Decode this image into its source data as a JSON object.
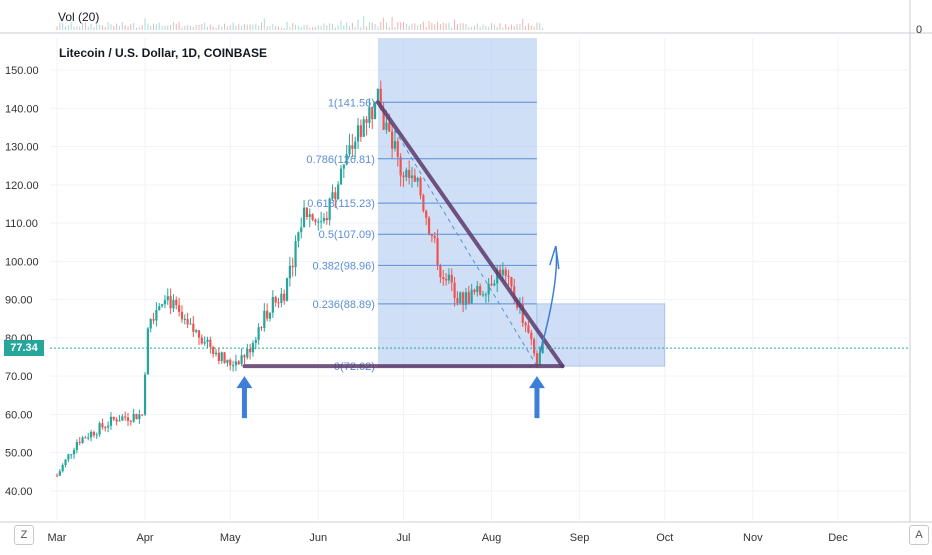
{
  "header": {
    "volume_label": "Vol (20)",
    "volume_axis_zero": "0",
    "title": "Litecoin / U.S. Dollar, 1D, COINBASE",
    "current_price": "77.34"
  },
  "controls": {
    "left_button": "Z",
    "right_button": "A"
  },
  "colors": {
    "up": "#26a69a",
    "down": "#ef5350",
    "grid": "#f0f3fa",
    "accent_line": "#26a69a",
    "fib": "#5b8ed6",
    "box_fill": "#a8c4ef",
    "trend_line": "#5c3a6b"
  },
  "chart_data": {
    "type": "candlestick",
    "title": "Litecoin / U.S. Dollar, 1D, COINBASE",
    "ylim": [
      35,
      158
    ],
    "y_ticks": [
      "40.00",
      "50.00",
      "60.00",
      "70.00",
      "80.00",
      "90.00",
      "100.00",
      "110.00",
      "120.00",
      "130.00",
      "140.00",
      "150.00"
    ],
    "x_ticks": [
      "Mar",
      "Apr",
      "May",
      "Jun",
      "Jul",
      "Aug",
      "Sep",
      "Oct",
      "Nov",
      "Dec"
    ],
    "x_range": [
      "2019-03-01",
      "2019-12-31"
    ],
    "grid": true,
    "current_price": 77.34,
    "price_path": [
      {
        "date": "2019-03-01",
        "value": 44
      },
      {
        "date": "2019-03-08",
        "value": 53
      },
      {
        "date": "2019-03-15",
        "value": 56
      },
      {
        "date": "2019-03-22",
        "value": 59
      },
      {
        "date": "2019-03-31",
        "value": 60
      },
      {
        "date": "2019-04-02",
        "value": 84
      },
      {
        "date": "2019-04-08",
        "value": 92
      },
      {
        "date": "2019-04-15",
        "value": 83
      },
      {
        "date": "2019-04-22",
        "value": 80
      },
      {
        "date": "2019-04-30",
        "value": 73
      },
      {
        "date": "2019-05-07",
        "value": 76
      },
      {
        "date": "2019-05-13",
        "value": 86
      },
      {
        "date": "2019-05-20",
        "value": 92
      },
      {
        "date": "2019-05-27",
        "value": 113
      },
      {
        "date": "2019-06-03",
        "value": 110
      },
      {
        "date": "2019-06-10",
        "value": 125
      },
      {
        "date": "2019-06-17",
        "value": 137
      },
      {
        "date": "2019-06-22",
        "value": 141.56
      },
      {
        "date": "2019-06-30",
        "value": 124
      },
      {
        "date": "2019-07-07",
        "value": 118
      },
      {
        "date": "2019-07-14",
        "value": 98
      },
      {
        "date": "2019-07-21",
        "value": 90
      },
      {
        "date": "2019-07-28",
        "value": 92
      },
      {
        "date": "2019-08-04",
        "value": 98
      },
      {
        "date": "2019-08-11",
        "value": 88
      },
      {
        "date": "2019-08-17",
        "value": 73
      },
      {
        "date": "2019-08-19",
        "value": 77.34
      }
    ],
    "fibonacci": {
      "range": [
        "2019-06-22",
        "2019-08-17"
      ],
      "levels": [
        {
          "label": "1(141.56)",
          "value": 141.56
        },
        {
          "label": "0.786(126.81)",
          "value": 126.81
        },
        {
          "label": "0.618(115.23)",
          "value": 115.23
        },
        {
          "label": "0.5(107.09)",
          "value": 107.09
        },
        {
          "label": "0.382(98.96)",
          "value": 98.96
        },
        {
          "label": "0.236(88.89)",
          "value": 88.89
        },
        {
          "label": "0(72.62)",
          "value": 72.62
        }
      ]
    },
    "projection_box": {
      "from": "2019-08-17",
      "to": "2019-10-01",
      "low": 72.62,
      "high": 88.89
    },
    "trend_lines": [
      {
        "from": {
          "date": "2019-06-22",
          "value": 141.56
        },
        "to": {
          "date": "2019-08-26",
          "value": 72.62
        }
      },
      {
        "from": {
          "date": "2019-05-06",
          "value": 72.62
        },
        "to": {
          "date": "2019-08-26",
          "value": 72.62
        }
      }
    ],
    "markers": [
      {
        "type": "arrow-up",
        "date": "2019-05-06",
        "value": 72.62
      },
      {
        "type": "arrow-up",
        "date": "2019-08-17",
        "value": 72.62
      }
    ]
  }
}
